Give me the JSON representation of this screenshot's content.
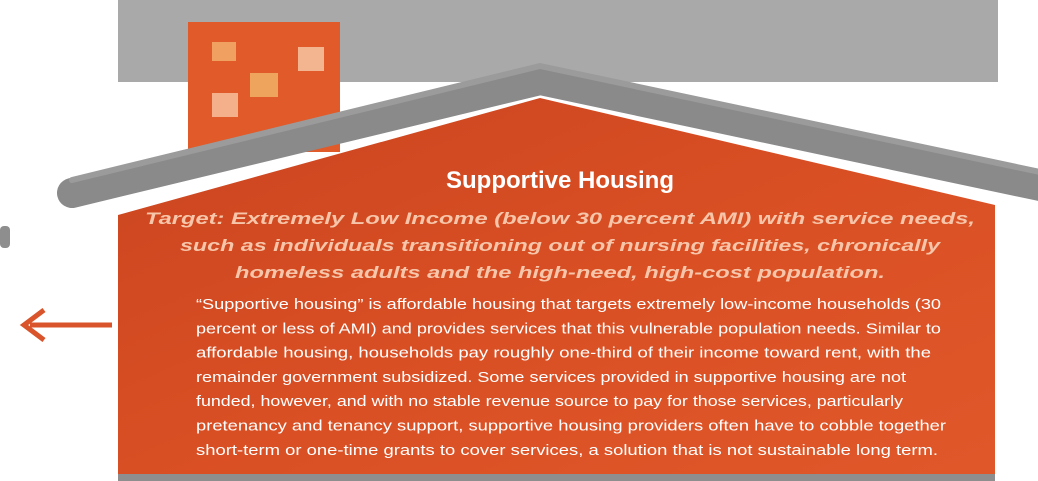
{
  "title": "Supportive Housing",
  "target_lines": [
    "Target: Extremely Low Income (below 30 percent AMI) with service needs,",
    "such as individuals transitioning out of nursing facilities, chronically",
    "homeless adults and the high-need, high-cost population."
  ],
  "body_lines": [
    "“Supportive housing” is affordable housing that targets extremely low-income households (30",
    "percent or less of AMI) and provides services that this vulnerable population needs. Similar to",
    "affordable housing, households pay roughly one-third of their income toward rent, with the",
    "remainder government subsidized. Some services provided in supportive housing are not",
    "funded, however, and with no stable revenue source to pay for those services, particularly",
    "pretenancy and tenancy support, supportive housing providers often have to cobble together",
    "short-term or one-time grants to cover services, a solution that is not sustainable long term."
  ]
}
